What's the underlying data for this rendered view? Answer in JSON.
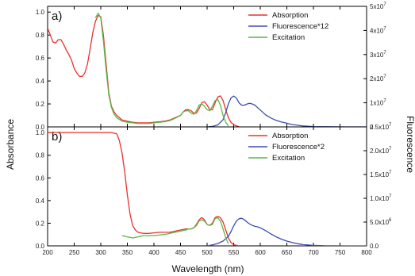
{
  "chart_data": [
    {
      "type": "line",
      "panel_label": "a)",
      "ylabel_left": "Absorbance",
      "ylim_left": [
        0,
        1.05
      ],
      "yticks_left": [
        "0.0",
        "0.2",
        "0.4",
        "0.6",
        "0.8",
        "1.0"
      ],
      "ylim_right": [
        0,
        50000000
      ],
      "yticks_right": [
        {
          "base": "0",
          "exp": ""
        },
        {
          "base": "1x10",
          "exp": "7"
        },
        {
          "base": "2x10",
          "exp": "7"
        },
        {
          "base": "3x10",
          "exp": "7"
        },
        {
          "base": "4x10",
          "exp": "7"
        },
        {
          "base": "5x10",
          "exp": "7"
        }
      ],
      "xlim": [
        200,
        800
      ],
      "legend_position": "top-right",
      "colors": {
        "absorption": "#e8322d",
        "fluorescence": "#3b4cb0",
        "excitation": "#5cb54a"
      },
      "series": [
        {
          "name": "Absorption",
          "axis": "left",
          "color": "#e8322d",
          "x": [
            200,
            205,
            210,
            215,
            220,
            225,
            230,
            235,
            240,
            245,
            250,
            255,
            260,
            265,
            270,
            275,
            280,
            285,
            290,
            295,
            300,
            305,
            310,
            315,
            320,
            325,
            330,
            335,
            340,
            350,
            360,
            370,
            380,
            390,
            400,
            410,
            420,
            430,
            440,
            450,
            455,
            460,
            465,
            470,
            475,
            480,
            485,
            490,
            495,
            500,
            505,
            510,
            515,
            520,
            525,
            530,
            535,
            540,
            545,
            550,
            555,
            560
          ],
          "y": [
            0.86,
            0.8,
            0.74,
            0.73,
            0.76,
            0.76,
            0.72,
            0.67,
            0.63,
            0.58,
            0.51,
            0.47,
            0.44,
            0.44,
            0.47,
            0.55,
            0.68,
            0.82,
            0.92,
            0.97,
            0.96,
            0.8,
            0.55,
            0.3,
            0.18,
            0.13,
            0.1,
            0.08,
            0.06,
            0.05,
            0.04,
            0.035,
            0.035,
            0.035,
            0.04,
            0.045,
            0.05,
            0.06,
            0.08,
            0.1,
            0.13,
            0.15,
            0.15,
            0.14,
            0.12,
            0.12,
            0.16,
            0.21,
            0.22,
            0.19,
            0.15,
            0.15,
            0.21,
            0.26,
            0.27,
            0.23,
            0.15,
            0.08,
            0.04,
            0.02,
            0.01,
            0.0
          ]
        },
        {
          "name": "Fluorescence*12",
          "axis": "right",
          "color": "#3b4cb0",
          "x": [
            500,
            510,
            520,
            530,
            535,
            540,
            545,
            550,
            555,
            560,
            565,
            570,
            575,
            580,
            585,
            590,
            595,
            600,
            610,
            620,
            630,
            640,
            650,
            660,
            670,
            680,
            690,
            700,
            720,
            740,
            760,
            780,
            800
          ],
          "y": [
            0,
            200000,
            800000,
            3000000,
            6000000,
            9500000,
            12000000,
            12800000,
            12000000,
            10000000,
            9000000,
            9000000,
            9500000,
            9800000,
            9500000,
            9000000,
            8000000,
            7000000,
            5000000,
            3700000,
            2700000,
            2000000,
            1500000,
            1000000,
            700000,
            400000,
            250000,
            100000,
            50000,
            20000,
            0,
            0,
            0
          ]
        },
        {
          "name": "Excitation",
          "axis": "left",
          "color": "#5cb54a",
          "x": [
            290,
            295,
            300,
            305,
            310,
            315,
            320,
            325,
            330,
            340,
            350,
            360,
            370,
            380,
            390,
            400,
            410,
            420,
            430,
            440,
            450,
            455,
            460,
            465,
            470,
            475,
            480,
            485,
            490,
            495,
            500,
            505,
            510,
            515,
            520,
            525,
            530,
            535,
            540
          ],
          "y": [
            0.95,
            0.99,
            0.95,
            0.75,
            0.5,
            0.28,
            0.17,
            0.11,
            0.08,
            0.05,
            0.04,
            0.035,
            0.03,
            0.03,
            0.03,
            0.035,
            0.04,
            0.045,
            0.055,
            0.075,
            0.1,
            0.13,
            0.14,
            0.14,
            0.12,
            0.11,
            0.14,
            0.19,
            0.2,
            0.18,
            0.15,
            0.14,
            0.18,
            0.23,
            0.24,
            0.19,
            0.1,
            0.04,
            0.01
          ]
        }
      ]
    },
    {
      "type": "line",
      "panel_label": "b)",
      "xlabel": "Wavelength (nm)",
      "ylabel_right": "Fluorescence",
      "ylim_left": [
        0,
        1.05
      ],
      "yticks_left": [
        "0.0",
        "0.2",
        "0.4",
        "0.6",
        "0.8",
        "1.0"
      ],
      "ylim_right": [
        0,
        25000000
      ],
      "yticks_right": [
        {
          "base": "0.0",
          "exp": ""
        },
        {
          "base": "5.0x10",
          "exp": "6"
        },
        {
          "base": "1.0x10",
          "exp": "7"
        },
        {
          "base": "1.5x10",
          "exp": "7"
        },
        {
          "base": "2.0x10",
          "exp": "7"
        },
        {
          "base": "2.5x10",
          "exp": "7"
        }
      ],
      "xlim": [
        200,
        800
      ],
      "xticks": [
        "200",
        "250",
        "300",
        "350",
        "400",
        "450",
        "500",
        "550",
        "600",
        "650",
        "700",
        "750",
        "800"
      ],
      "legend_position": "top-right",
      "series": [
        {
          "name": "Absorption",
          "axis": "left",
          "color": "#e8322d",
          "x": [
            200,
            250,
            300,
            320,
            330,
            335,
            340,
            345,
            350,
            355,
            360,
            365,
            370,
            380,
            390,
            400,
            410,
            420,
            430,
            440,
            450,
            460,
            470,
            475,
            480,
            485,
            490,
            495,
            500,
            505,
            510,
            515,
            520,
            525,
            530,
            535,
            540,
            545,
            550,
            555,
            560
          ],
          "y": [
            1.0,
            1.0,
            1.0,
            1.0,
            0.99,
            0.93,
            0.82,
            0.65,
            0.45,
            0.28,
            0.18,
            0.14,
            0.12,
            0.11,
            0.11,
            0.115,
            0.12,
            0.12,
            0.12,
            0.13,
            0.14,
            0.15,
            0.15,
            0.16,
            0.19,
            0.23,
            0.25,
            0.23,
            0.19,
            0.18,
            0.2,
            0.25,
            0.26,
            0.25,
            0.21,
            0.14,
            0.07,
            0.03,
            0.01,
            0.005,
            0.0
          ]
        },
        {
          "name": "Fluorescence*2",
          "axis": "right",
          "color": "#3b4cb0",
          "x": [
            500,
            510,
            520,
            530,
            540,
            545,
            550,
            555,
            560,
            565,
            570,
            575,
            580,
            585,
            590,
            595,
            600,
            610,
            620,
            630,
            640,
            650,
            660,
            670,
            680,
            690,
            700,
            720,
            740,
            760,
            800
          ],
          "y": [
            0,
            200000,
            500000,
            1000000,
            2000000,
            3000000,
            4200000,
            5200000,
            5700000,
            5800000,
            5500000,
            5000000,
            4600000,
            4300000,
            4100000,
            4000000,
            3800000,
            3200000,
            2500000,
            1900000,
            1400000,
            1000000,
            700000,
            450000,
            300000,
            180000,
            100000,
            40000,
            10000,
            0,
            0
          ]
        },
        {
          "name": "Excitation",
          "axis": "left",
          "color": "#5cb54a",
          "x": [
            340,
            350,
            360,
            370,
            380,
            390,
            400,
            410,
            420,
            430,
            440,
            450,
            460,
            465,
            470,
            475,
            480,
            485,
            490,
            495,
            500,
            505,
            510,
            515,
            520,
            525,
            530,
            535,
            540
          ],
          "y": [
            0.09,
            0.08,
            0.07,
            0.08,
            0.09,
            0.09,
            0.09,
            0.095,
            0.1,
            0.11,
            0.12,
            0.13,
            0.14,
            0.15,
            0.15,
            0.16,
            0.18,
            0.22,
            0.23,
            0.22,
            0.19,
            0.18,
            0.19,
            0.24,
            0.25,
            0.22,
            0.15,
            0.07,
            0.02
          ]
        }
      ]
    }
  ]
}
